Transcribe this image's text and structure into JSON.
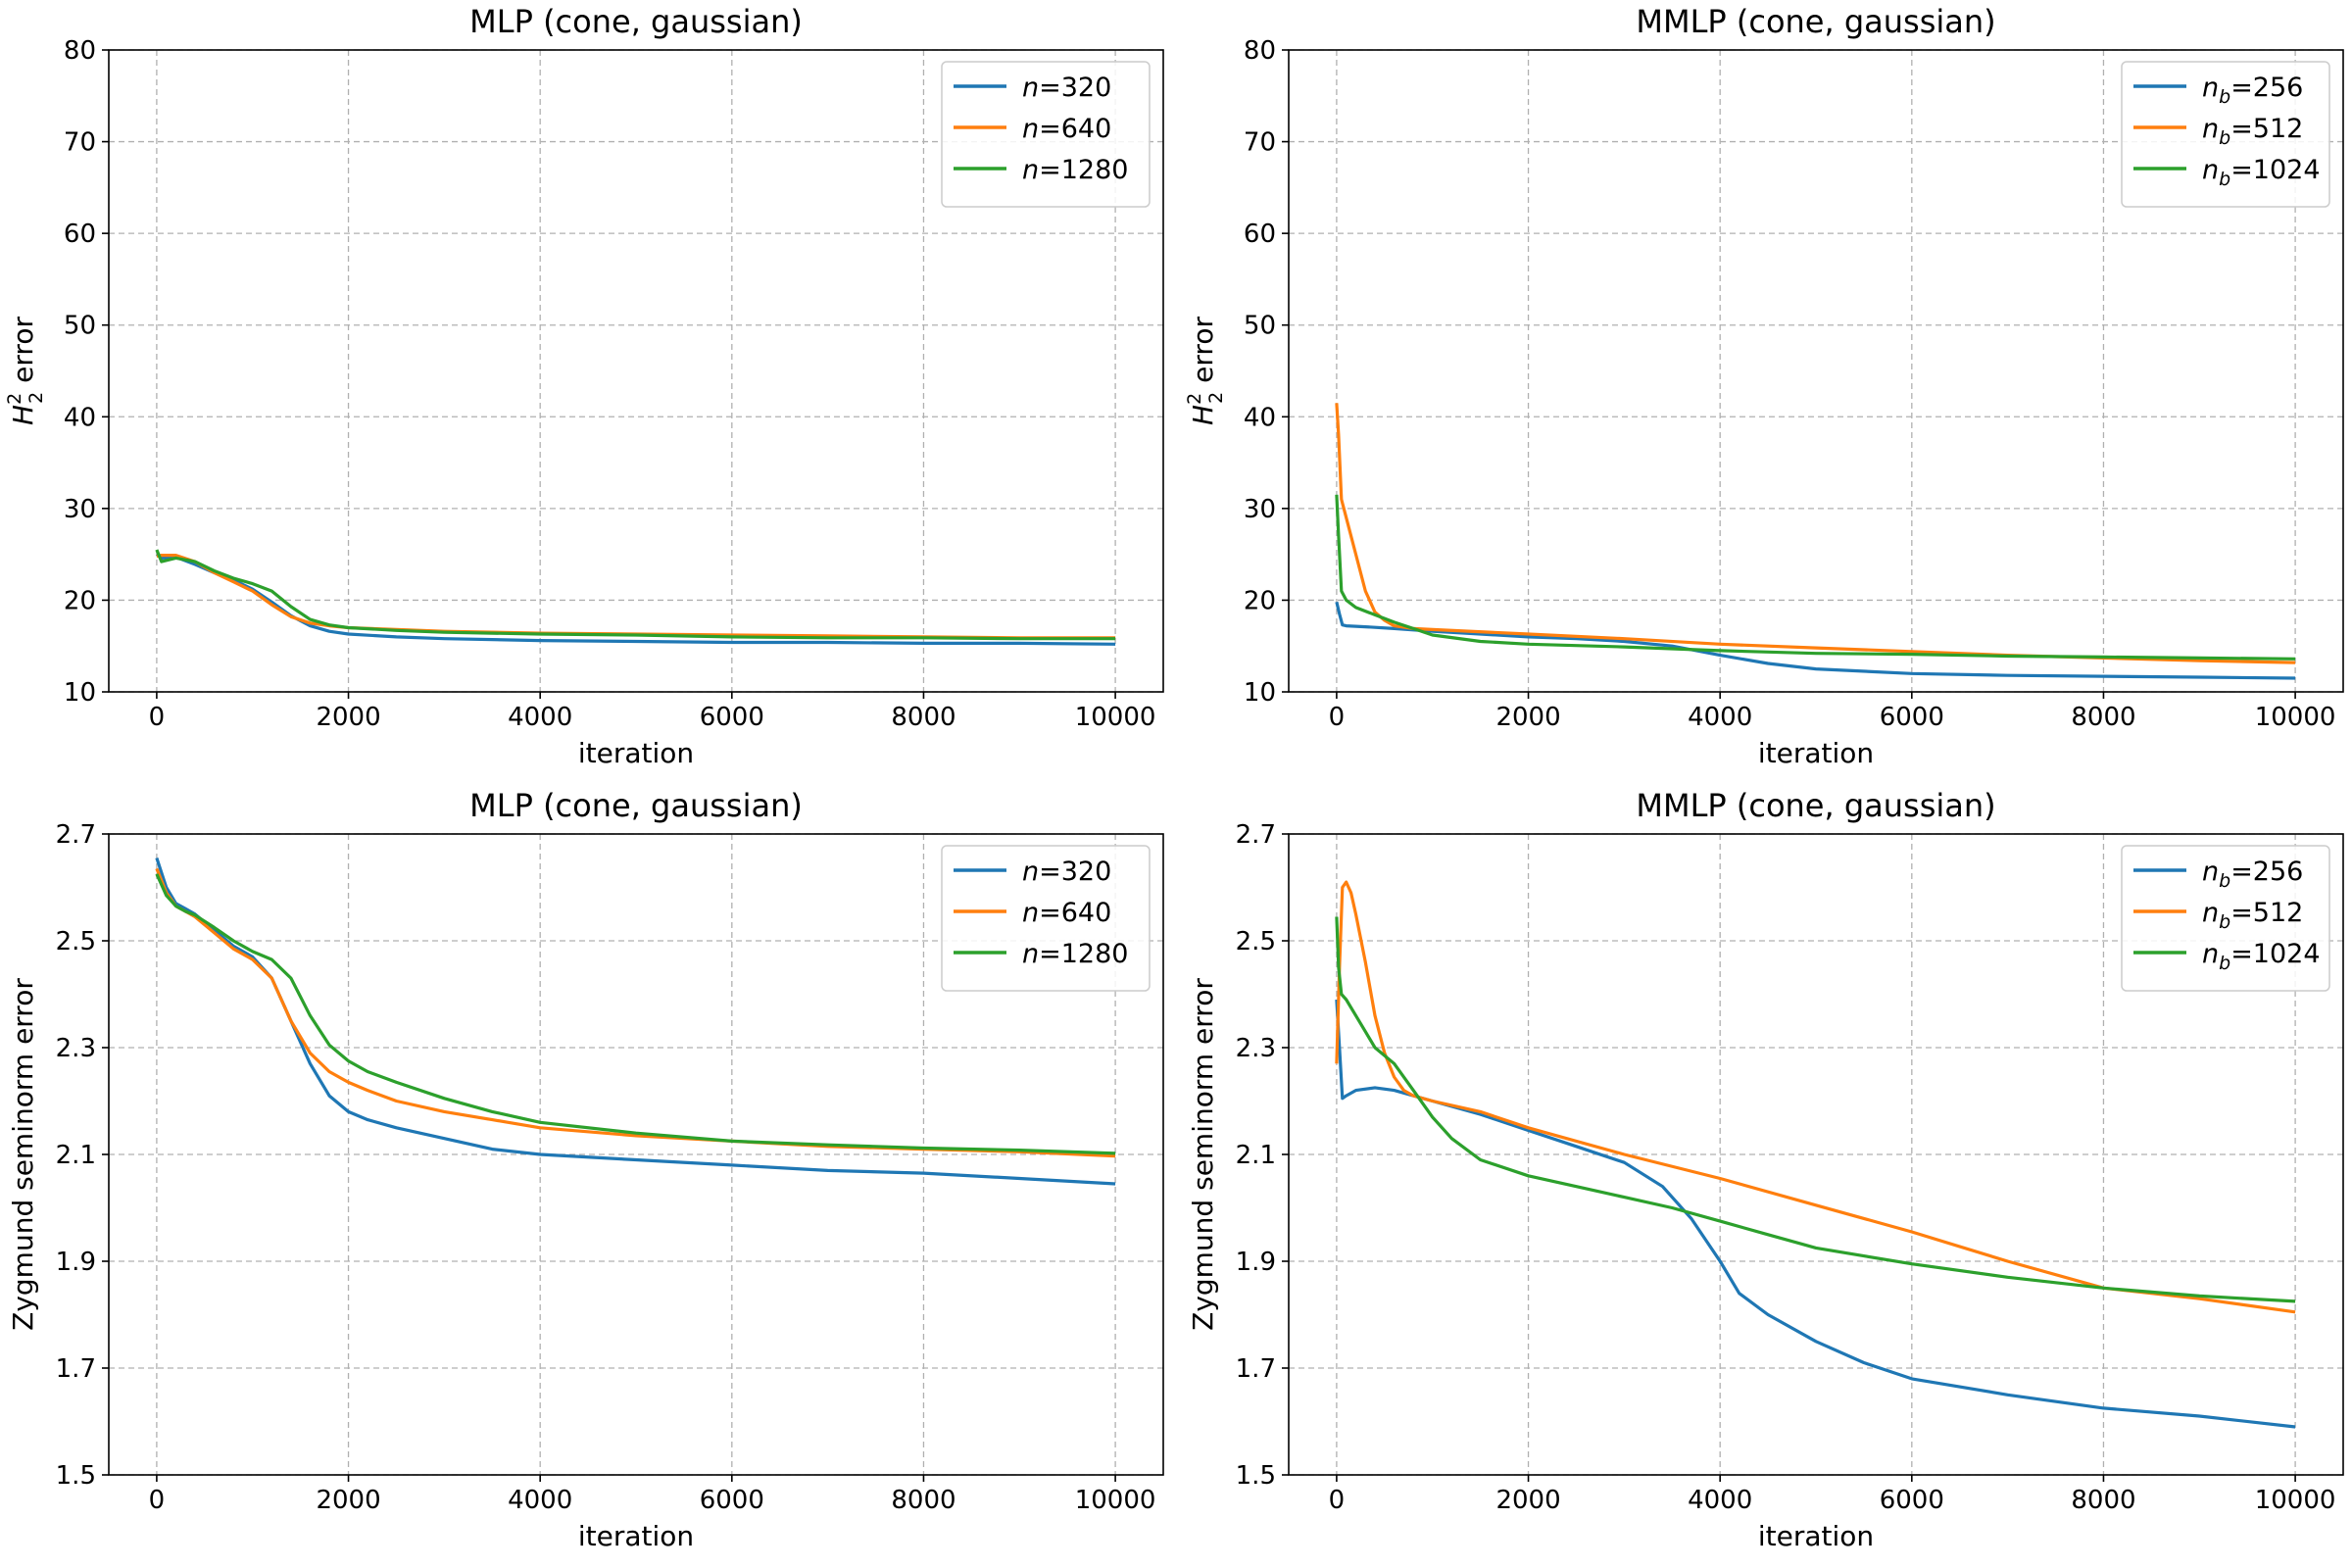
{
  "figure": {
    "colors": {
      "series1": "#1f77b4",
      "series2": "#ff7f0e",
      "series3": "#2ca02c",
      "grid": "#b0b0b0"
    }
  },
  "chart_data": [
    {
      "type": "line",
      "title": "MLP (cone, gaussian)",
      "xlabel": "iteration",
      "ylabel_prefix": "H",
      "ylabel_sub": "2",
      "ylabel_sup": "2",
      "ylabel_suffix": " error",
      "xlim": [
        -500,
        10500
      ],
      "ylim": [
        10,
        80
      ],
      "xticks": [
        0,
        2000,
        4000,
        6000,
        8000,
        10000
      ],
      "yticks": [
        10,
        20,
        30,
        40,
        50,
        60,
        70,
        80
      ],
      "grid": true,
      "legend_position": "top-right",
      "series": [
        {
          "legend_var": "n",
          "legend_sub": "",
          "legend_value": "=320",
          "color": "#1f77b4",
          "x": [
            0,
            50,
            200,
            400,
            600,
            800,
            1000,
            1200,
            1400,
            1600,
            1800,
            2000,
            2500,
            3000,
            4000,
            5000,
            6000,
            7000,
            8000,
            9000,
            10000
          ],
          "y": [
            25.0,
            24.6,
            24.7,
            23.9,
            23.0,
            22.2,
            21.2,
            19.8,
            18.3,
            17.2,
            16.6,
            16.3,
            16.0,
            15.8,
            15.6,
            15.5,
            15.4,
            15.4,
            15.3,
            15.3,
            15.2
          ]
        },
        {
          "legend_var": "n",
          "legend_sub": "",
          "legend_value": "=640",
          "color": "#ff7f0e",
          "x": [
            0,
            50,
            200,
            400,
            600,
            800,
            1000,
            1200,
            1400,
            1600,
            1800,
            2000,
            2500,
            3000,
            4000,
            5000,
            6000,
            7000,
            8000,
            9000,
            10000
          ],
          "y": [
            24.8,
            24.9,
            24.9,
            24.2,
            23.0,
            22.0,
            21.0,
            19.5,
            18.2,
            17.5,
            17.2,
            17.0,
            16.8,
            16.6,
            16.4,
            16.3,
            16.2,
            16.1,
            16.0,
            15.9,
            15.9
          ]
        },
        {
          "legend_var": "n",
          "legend_sub": "",
          "legend_value": "=1280",
          "color": "#2ca02c",
          "x": [
            0,
            50,
            200,
            400,
            600,
            800,
            1000,
            1200,
            1400,
            1600,
            1800,
            2000,
            2500,
            3000,
            4000,
            5000,
            6000,
            7000,
            8000,
            9000,
            10000
          ],
          "y": [
            25.5,
            24.2,
            24.6,
            24.2,
            23.2,
            22.4,
            21.8,
            21.0,
            19.3,
            17.9,
            17.3,
            17.0,
            16.7,
            16.5,
            16.3,
            16.2,
            16.0,
            15.9,
            15.9,
            15.8,
            15.8
          ]
        }
      ]
    },
    {
      "type": "line",
      "title": "MMLP (cone, gaussian)",
      "xlabel": "iteration",
      "ylabel_prefix": "H",
      "ylabel_sub": "2",
      "ylabel_sup": "2",
      "ylabel_suffix": " error",
      "xlim": [
        -500,
        10500
      ],
      "ylim": [
        10,
        80
      ],
      "xticks": [
        0,
        2000,
        4000,
        6000,
        8000,
        10000
      ],
      "yticks": [
        10,
        20,
        30,
        40,
        50,
        60,
        70,
        80
      ],
      "grid": true,
      "legend_position": "top-right",
      "series": [
        {
          "legend_var": "n",
          "legend_sub": "b",
          "legend_value": "=256",
          "color": "#1f77b4",
          "x": [
            0,
            30,
            60,
            100,
            300,
            600,
            1000,
            1500,
            2000,
            2500,
            3000,
            3500,
            4000,
            4500,
            5000,
            6000,
            7000,
            8000,
            9000,
            10000
          ],
          "y": [
            19.8,
            18.5,
            17.3,
            17.2,
            17.1,
            16.9,
            16.6,
            16.3,
            16.0,
            15.8,
            15.5,
            15.0,
            14.0,
            13.1,
            12.5,
            12.0,
            11.8,
            11.7,
            11.6,
            11.5
          ]
        },
        {
          "legend_var": "n",
          "legend_sub": "b",
          "legend_value": "=512",
          "color": "#ff7f0e",
          "x": [
            0,
            20,
            50,
            100,
            200,
            300,
            400,
            500,
            600,
            800,
            1000,
            2000,
            3000,
            4000,
            5000,
            6000,
            7000,
            8000,
            9000,
            10000
          ],
          "y": [
            41.5,
            38.0,
            31.0,
            29.0,
            25.0,
            21.0,
            18.7,
            17.8,
            17.2,
            16.9,
            16.8,
            16.3,
            15.8,
            15.2,
            14.8,
            14.4,
            14.0,
            13.7,
            13.4,
            13.2
          ]
        },
        {
          "legend_var": "n",
          "legend_sub": "b",
          "legend_value": "=1024",
          "color": "#2ca02c",
          "x": [
            0,
            20,
            50,
            100,
            200,
            400,
            600,
            800,
            1000,
            1500,
            2000,
            3000,
            4000,
            5000,
            6000,
            7000,
            8000,
            9000,
            10000
          ],
          "y": [
            31.5,
            27.0,
            21.0,
            20.0,
            19.2,
            18.4,
            17.6,
            16.9,
            16.2,
            15.5,
            15.2,
            14.9,
            14.5,
            14.2,
            14.1,
            13.9,
            13.8,
            13.7,
            13.6
          ]
        }
      ]
    },
    {
      "type": "line",
      "title": "MLP (cone, gaussian)",
      "xlabel": "iteration",
      "ylabel": "Zygmund seminorm error",
      "xlim": [
        -500,
        10500
      ],
      "ylim": [
        1.5,
        2.7
      ],
      "xticks": [
        0,
        2000,
        4000,
        6000,
        8000,
        10000
      ],
      "yticks": [
        1.5,
        1.7,
        1.9,
        2.1,
        2.3,
        2.5,
        2.7
      ],
      "grid": true,
      "legend_position": "top-right",
      "series": [
        {
          "legend_var": "n",
          "legend_sub": "",
          "legend_value": "=320",
          "color": "#1f77b4",
          "x": [
            0,
            100,
            200,
            300,
            400,
            600,
            800,
            1000,
            1200,
            1400,
            1600,
            1800,
            2000,
            2200,
            2500,
            3000,
            3500,
            4000,
            5000,
            6000,
            7000,
            8000,
            9000,
            10000
          ],
          "y": [
            2.655,
            2.6,
            2.57,
            2.56,
            2.55,
            2.52,
            2.49,
            2.47,
            2.43,
            2.35,
            2.27,
            2.21,
            2.18,
            2.165,
            2.15,
            2.13,
            2.11,
            2.1,
            2.09,
            2.08,
            2.07,
            2.065,
            2.055,
            2.045
          ]
        },
        {
          "legend_var": "n",
          "legend_sub": "",
          "legend_value": "=640",
          "color": "#ff7f0e",
          "x": [
            0,
            100,
            200,
            300,
            400,
            600,
            800,
            1000,
            1200,
            1400,
            1600,
            1800,
            2000,
            2200,
            2500,
            3000,
            3500,
            4000,
            5000,
            6000,
            7000,
            8000,
            9000,
            10000
          ],
          "y": [
            2.635,
            2.59,
            2.565,
            2.555,
            2.545,
            2.515,
            2.485,
            2.465,
            2.43,
            2.35,
            2.29,
            2.255,
            2.235,
            2.22,
            2.2,
            2.18,
            2.165,
            2.15,
            2.135,
            2.125,
            2.115,
            2.11,
            2.105,
            2.097
          ]
        },
        {
          "legend_var": "n",
          "legend_sub": "",
          "legend_value": "=1280",
          "color": "#2ca02c",
          "x": [
            0,
            100,
            200,
            300,
            400,
            600,
            800,
            1000,
            1200,
            1400,
            1600,
            1800,
            2000,
            2200,
            2500,
            3000,
            3500,
            4000,
            5000,
            6000,
            7000,
            8000,
            9000,
            10000
          ],
          "y": [
            2.625,
            2.585,
            2.565,
            2.555,
            2.548,
            2.525,
            2.5,
            2.48,
            2.465,
            2.43,
            2.36,
            2.305,
            2.275,
            2.255,
            2.235,
            2.205,
            2.18,
            2.16,
            2.14,
            2.125,
            2.118,
            2.112,
            2.108,
            2.102
          ]
        }
      ]
    },
    {
      "type": "line",
      "title": "MMLP (cone, gaussian)",
      "xlabel": "iteration",
      "ylabel": "Zygmund seminorm error",
      "xlim": [
        -500,
        10500
      ],
      "ylim": [
        1.5,
        2.7
      ],
      "xticks": [
        0,
        2000,
        4000,
        6000,
        8000,
        10000
      ],
      "yticks": [
        1.5,
        1.7,
        1.9,
        2.1,
        2.3,
        2.5,
        2.7
      ],
      "grid": true,
      "legend_position": "top-right",
      "series": [
        {
          "legend_var": "n",
          "legend_sub": "b",
          "legend_value": "=256",
          "color": "#1f77b4",
          "x": [
            0,
            30,
            60,
            100,
            200,
            400,
            600,
            800,
            1000,
            1500,
            2000,
            2500,
            3000,
            3400,
            3700,
            4000,
            4200,
            4500,
            5000,
            5500,
            6000,
            7000,
            8000,
            9000,
            10000
          ],
          "y": [
            2.39,
            2.3,
            2.205,
            2.21,
            2.22,
            2.225,
            2.22,
            2.21,
            2.2,
            2.175,
            2.145,
            2.115,
            2.085,
            2.04,
            1.98,
            1.9,
            1.84,
            1.8,
            1.75,
            1.71,
            1.68,
            1.65,
            1.625,
            1.61,
            1.59
          ]
        },
        {
          "legend_var": "n",
          "legend_sub": "b",
          "legend_value": "=512",
          "color": "#ff7f0e",
          "x": [
            0,
            30,
            60,
            100,
            150,
            200,
            300,
            400,
            500,
            600,
            700,
            800,
            1000,
            1500,
            2000,
            3000,
            4000,
            5000,
            6000,
            7000,
            8000,
            9000,
            10000
          ],
          "y": [
            2.27,
            2.45,
            2.6,
            2.61,
            2.59,
            2.55,
            2.46,
            2.36,
            2.29,
            2.245,
            2.22,
            2.21,
            2.2,
            2.18,
            2.15,
            2.1,
            2.055,
            2.005,
            1.955,
            1.9,
            1.85,
            1.83,
            1.805
          ]
        },
        {
          "legend_var": "n",
          "legend_sub": "b",
          "legend_value": "=1024",
          "color": "#2ca02c",
          "x": [
            0,
            20,
            50,
            100,
            200,
            300,
            400,
            600,
            800,
            1000,
            1200,
            1500,
            2000,
            2500,
            3000,
            3500,
            4000,
            4500,
            5000,
            5500,
            6000,
            7000,
            8000,
            9000,
            10000
          ],
          "y": [
            2.545,
            2.45,
            2.4,
            2.39,
            2.36,
            2.33,
            2.3,
            2.27,
            2.22,
            2.17,
            2.13,
            2.09,
            2.06,
            2.04,
            2.02,
            2.0,
            1.975,
            1.95,
            1.925,
            1.91,
            1.895,
            1.87,
            1.85,
            1.835,
            1.825
          ]
        }
      ]
    }
  ]
}
